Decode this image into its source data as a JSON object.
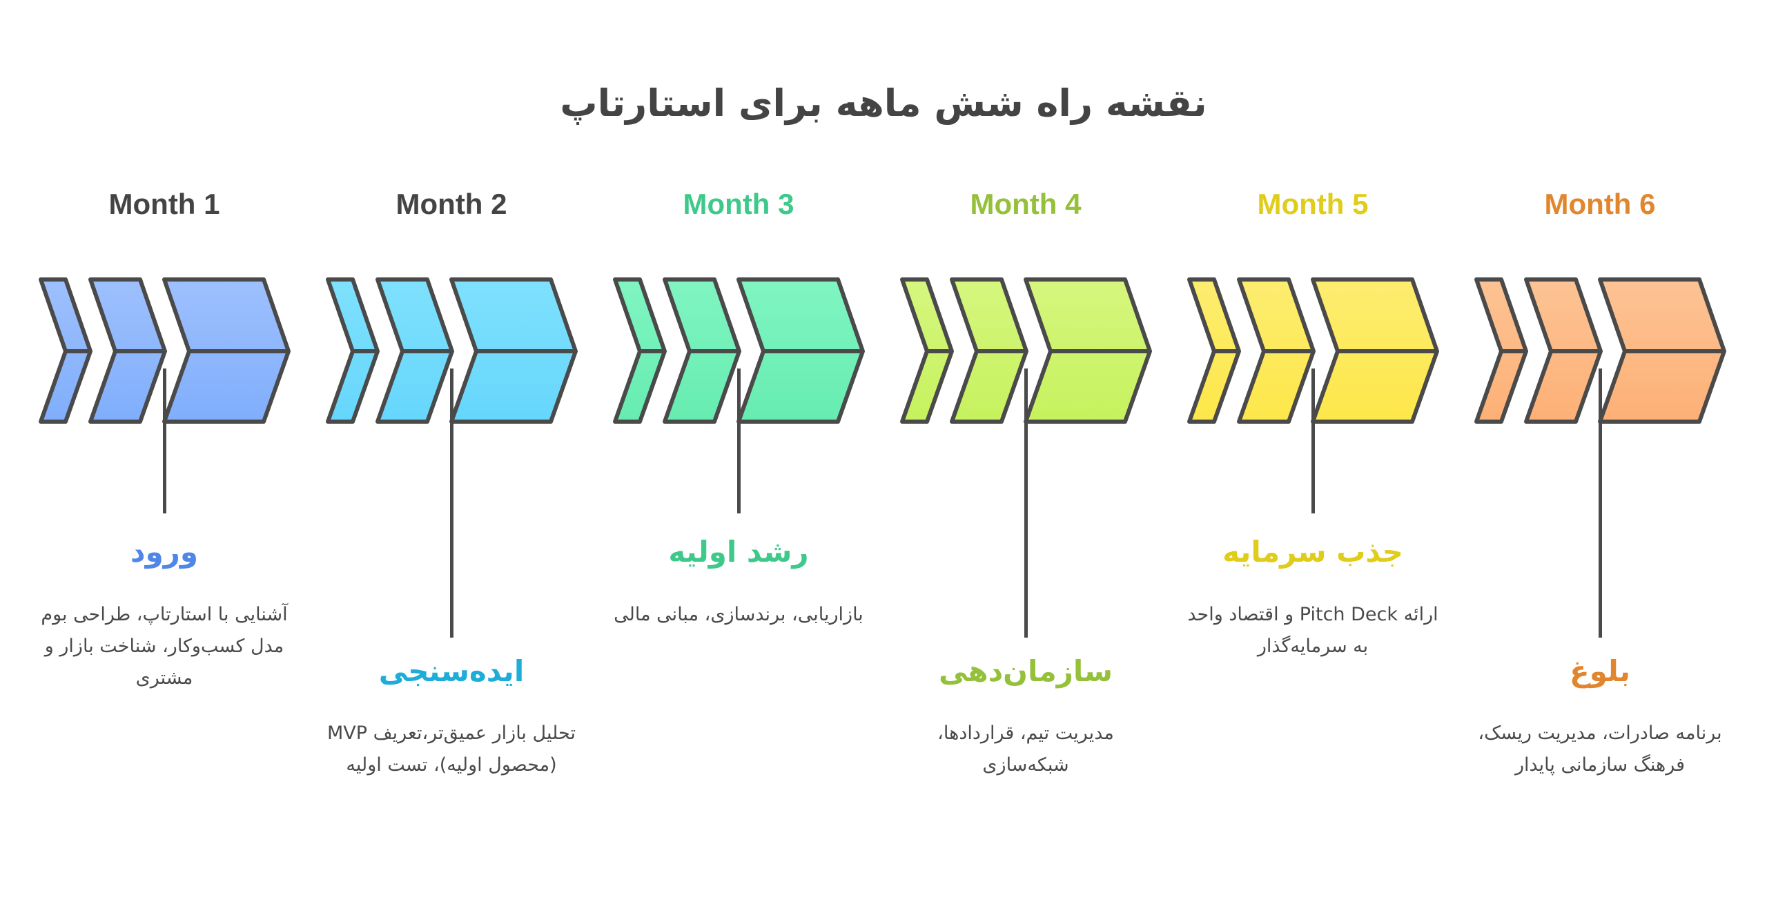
{
  "title": "نقشه راه شش ماهه برای استارتاپ",
  "stroke_color": "#4a4a4a",
  "months": [
    {
      "label": "Month 1",
      "label_color": "#444444",
      "title": "ورود",
      "title_color": "#4f86e8",
      "desc": "آشنایی با استارتاپ، طراحی بوم مدل کسب‌وکار، شناخت بازار و مشتری",
      "fill_top": "#9ec0fd",
      "fill_bottom": "#80aefc"
    },
    {
      "label": "Month 2",
      "label_color": "#444444",
      "title": "ایده‌سنجی",
      "title_color": "#1eacd8",
      "desc": "تحلیل بازار عمیق‌تر،تعریف MVP (محصول اولیه)، تست اولیه",
      "fill_top": "#7fe1fd",
      "fill_bottom": "#66d6fc"
    },
    {
      "label": "Month 3",
      "label_color": "#3ec98a",
      "title": "رشد اولیه",
      "title_color": "#3ec98a",
      "desc": "بازاریابی، برندسازی، مبانی مالی",
      "fill_top": "#80f5c2",
      "fill_bottom": "#66ecb0"
    },
    {
      "label": "Month 4",
      "label_color": "#94c03a",
      "title": "سازمان‌دهی",
      "title_color": "#94c03a",
      "desc": "مدیریت تیم، قراردادها، شبکه‌سازی",
      "fill_top": "#d6f67e",
      "fill_bottom": "#c6f25e"
    },
    {
      "label": "Month 5",
      "label_color": "#e0cc1a",
      "title": "جذب سرمایه",
      "title_color": "#e0cc1a",
      "desc": "ارائه Pitch Deck و اقتصاد واحد به سرمایه‌گذار",
      "fill_top": "#fded70",
      "fill_bottom": "#fde74a"
    },
    {
      "label": "Month 6",
      "label_color": "#e0862f",
      "title": "بلوغ",
      "title_color": "#e0862f",
      "desc": "برنامه صادرات، مدیریت ریسک، فرهنگ سازمانی پایدار",
      "fill_top": "#fdc394",
      "fill_bottom": "#fdb076"
    }
  ]
}
